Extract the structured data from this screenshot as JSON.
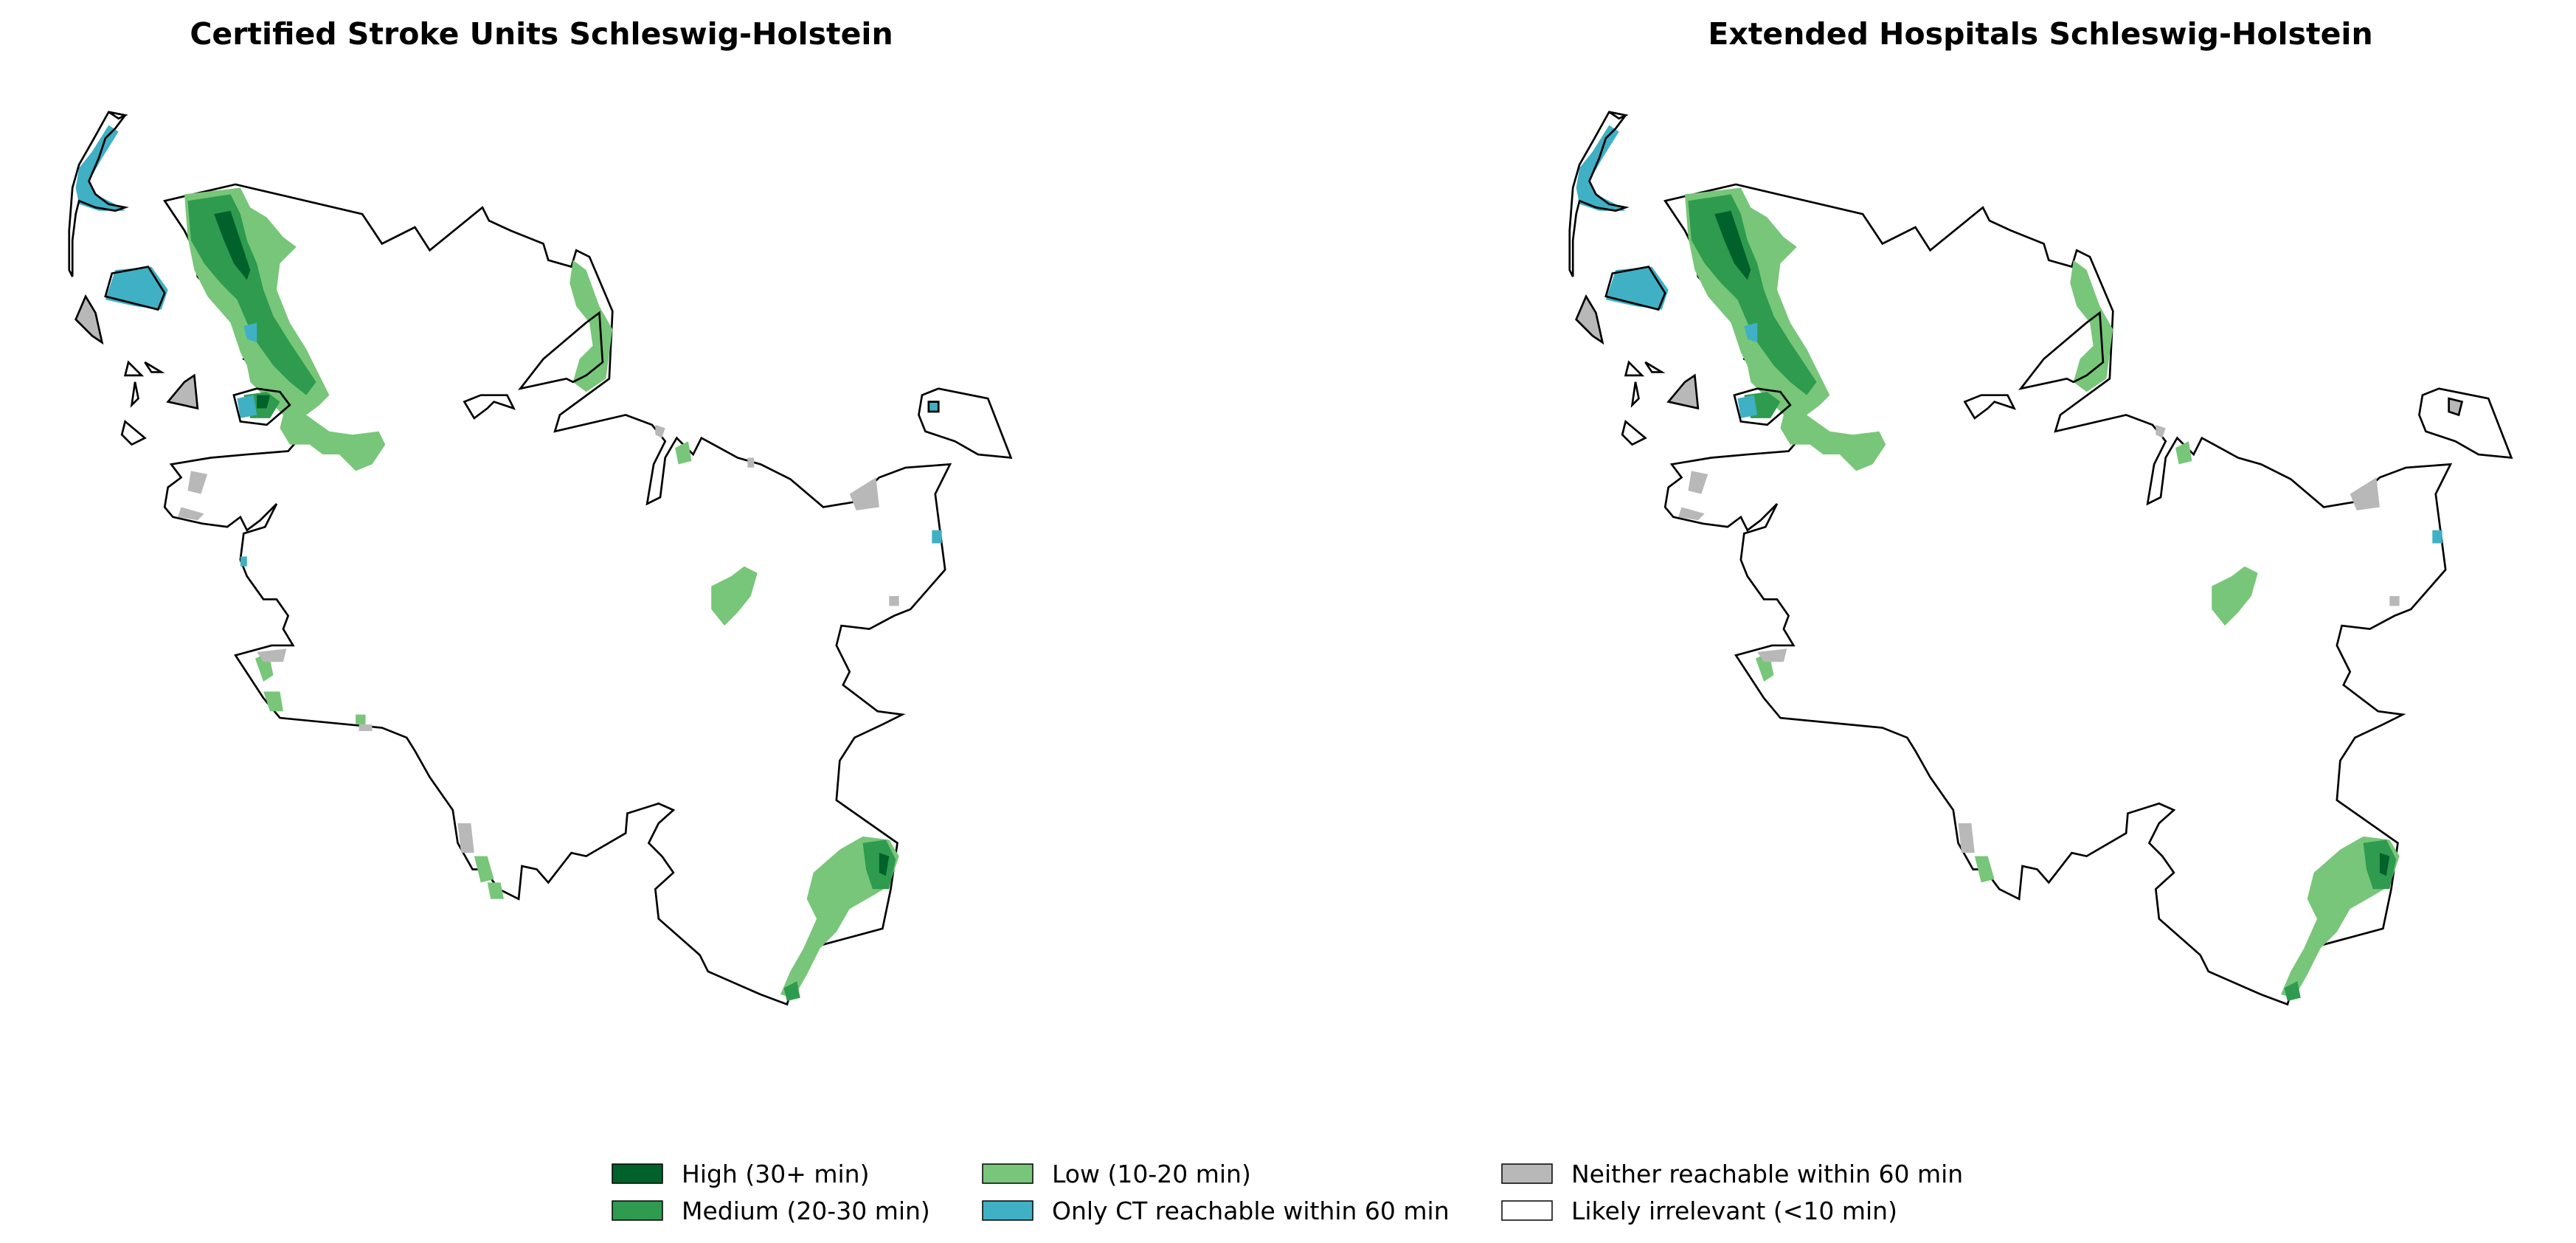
{
  "panels": [
    {
      "title": "Certified Stroke Units Schleswig-Holstein",
      "variant": "certified"
    },
    {
      "title": "Extended Hospitals Schleswig-Holstein",
      "variant": "extended"
    }
  ],
  "legend": {
    "items": [
      {
        "label": "High (30+ min)",
        "color": "#00612a"
      },
      {
        "label": "Medium (20-30 min)",
        "color": "#2e9b4f"
      },
      {
        "label": "Low (10-20 min)",
        "color": "#78c679"
      },
      {
        "label": "Only CT reachable within 60 min",
        "color": "#40b0c4"
      },
      {
        "label": "Neither reachable within 60 min",
        "color": "#b8b8b8"
      },
      {
        "label": "Likely irrelevant (<10 min)",
        "color": "#ffffff"
      }
    ]
  },
  "colors": {
    "high": "#00612a",
    "medium": "#2e9b4f",
    "low": "#78c679",
    "ct_only": "#40b0c4",
    "neither": "#b8b8b8",
    "irrelevant": "#ffffff",
    "border": "#000000"
  }
}
